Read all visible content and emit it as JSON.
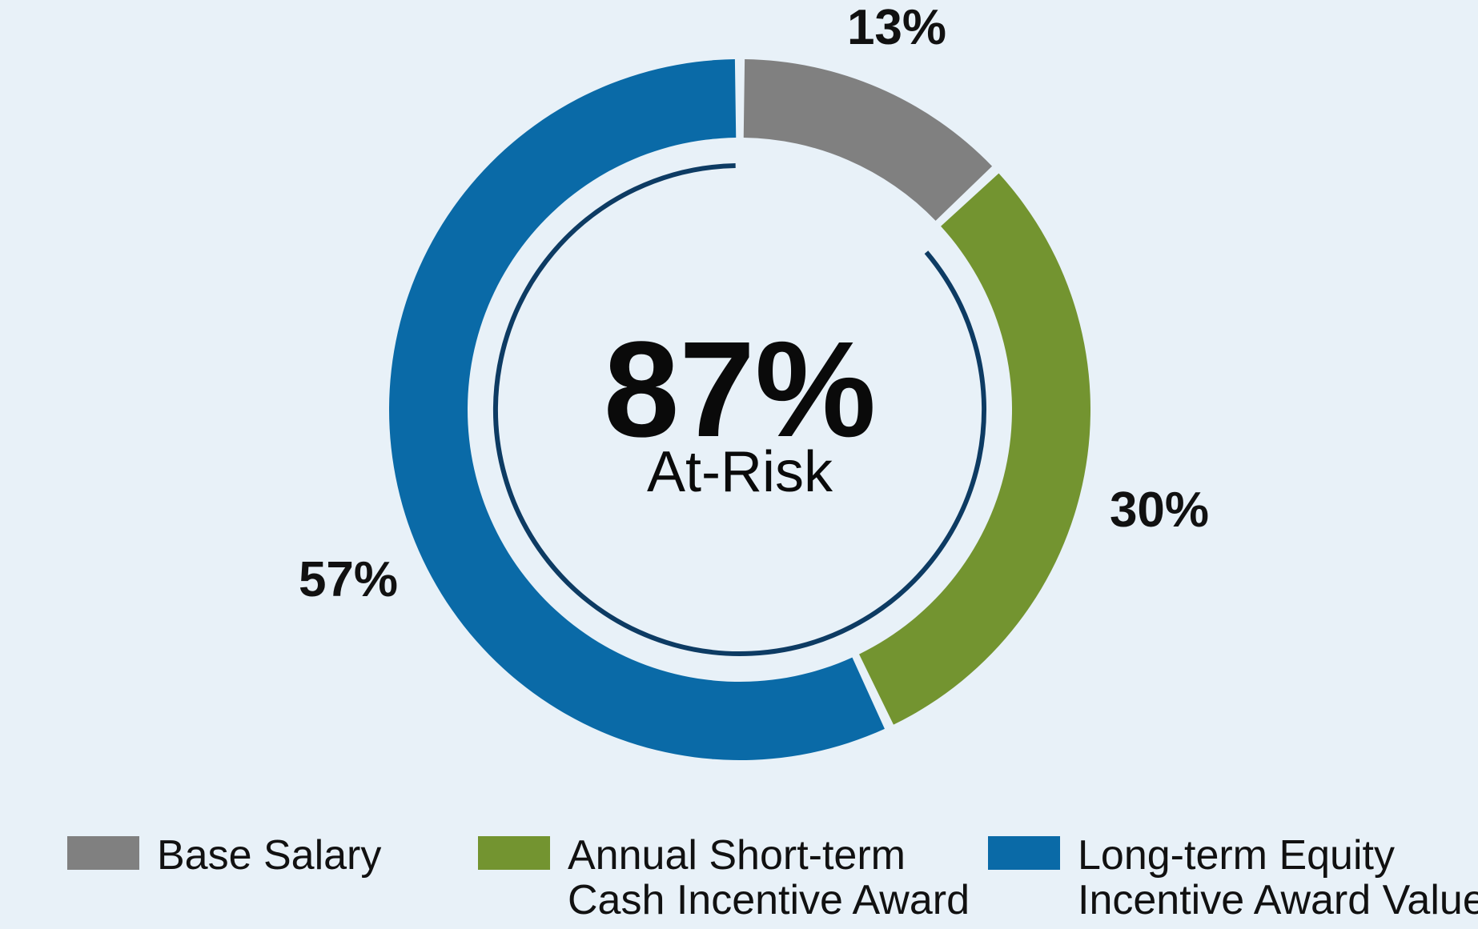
{
  "chart_data": {
    "type": "pie",
    "variant": "donut",
    "center": {
      "value": "87%",
      "label": "At-Risk"
    },
    "slices": [
      {
        "name": "Base Salary",
        "value": 13,
        "label": "13%",
        "color": "#808080",
        "legend_lines": [
          "Base Salary"
        ]
      },
      {
        "name": "Annual Short-term Cash Incentive Award",
        "value": 30,
        "label": "30%",
        "color": "#739430",
        "legend_lines": [
          "Annual Short-term",
          "Cash Incentive Award"
        ]
      },
      {
        "name": "Long-term Equity Incentive Award Value",
        "value": 57,
        "label": "57%",
        "color": "#0a6aa7",
        "legend_lines": [
          "Long-term Equity",
          "Incentive Award Value"
        ]
      }
    ],
    "at_risk_arc_color": "#0d3b63",
    "legend_position": "bottom"
  }
}
